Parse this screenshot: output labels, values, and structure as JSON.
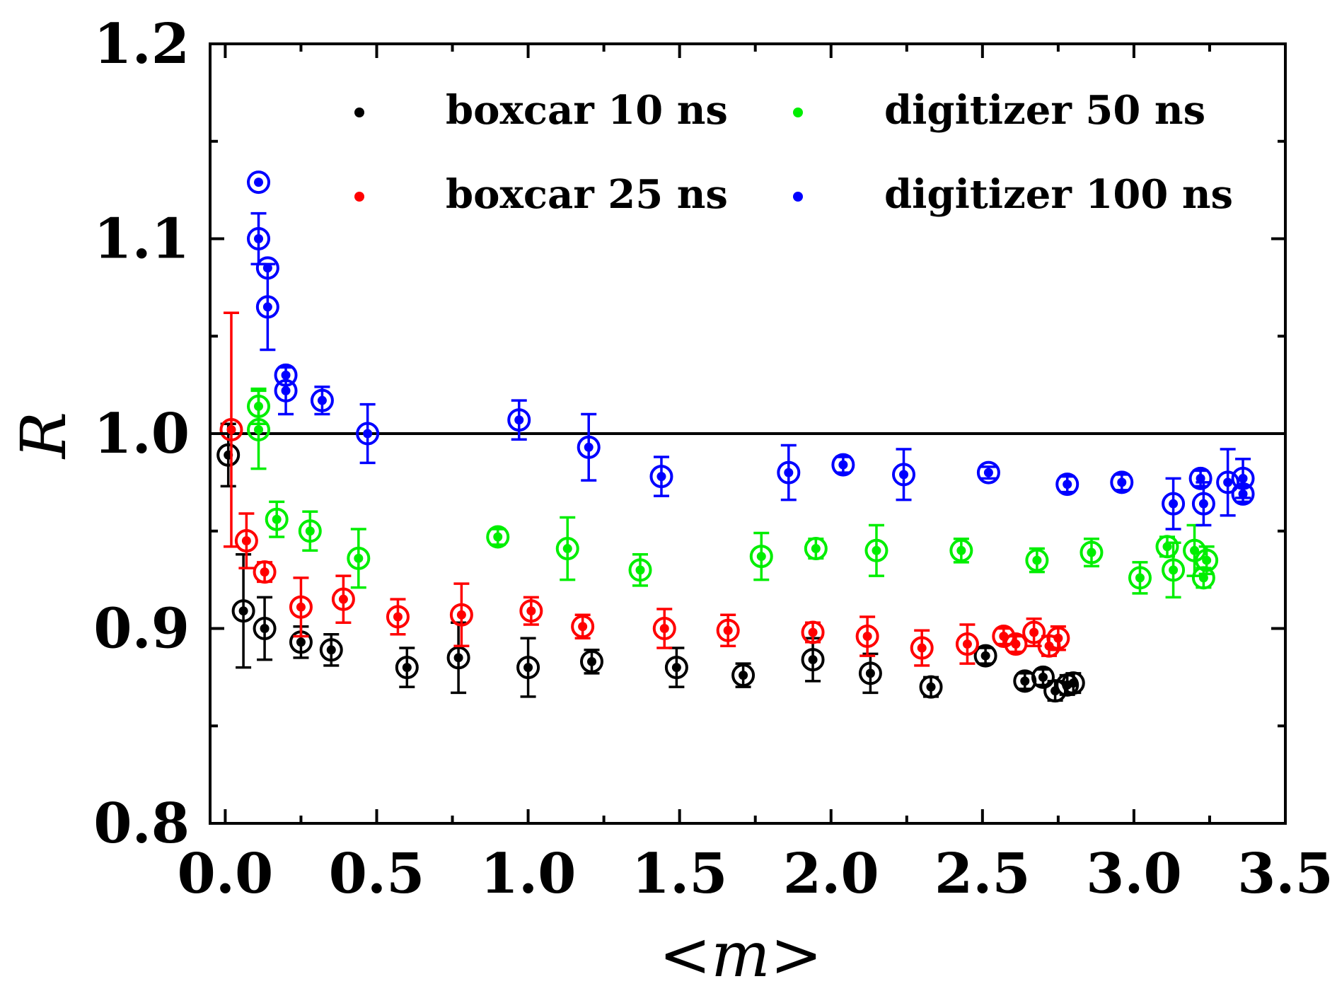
{
  "chart_data": {
    "type": "scatter",
    "title": "",
    "xlabel": "<m>",
    "ylabel": "R",
    "xlim": [
      -0.05,
      3.5
    ],
    "ylim": [
      0.8,
      1.2
    ],
    "xticks": [
      "0.0",
      "0.5",
      "1.0",
      "1.5",
      "2.0",
      "2.5",
      "3.0",
      "3.5"
    ],
    "xtick_values": [
      0,
      0.5,
      1.0,
      1.5,
      2.0,
      2.5,
      3.0,
      3.5
    ],
    "yticks": [
      "0.8",
      "0.9",
      "1.0",
      "1.1",
      "1.2"
    ],
    "ytick_values": [
      0.8,
      0.9,
      1.0,
      1.1,
      1.2
    ],
    "reference_line": 1.0,
    "legend_position": "top",
    "series": [
      {
        "name": "boxcar 10 ns",
        "color": "#000000",
        "points": [
          {
            "x": 0.01,
            "y": 0.989,
            "err": 0.016
          },
          {
            "x": 0.06,
            "y": 0.909,
            "err": 0.029
          },
          {
            "x": 0.13,
            "y": 0.9,
            "err": 0.016
          },
          {
            "x": 0.25,
            "y": 0.893,
            "err": 0.008
          },
          {
            "x": 0.35,
            "y": 0.889,
            "err": 0.008
          },
          {
            "x": 0.6,
            "y": 0.88,
            "err": 0.01
          },
          {
            "x": 0.77,
            "y": 0.885,
            "err": 0.018
          },
          {
            "x": 1.0,
            "y": 0.88,
            "err": 0.015
          },
          {
            "x": 1.21,
            "y": 0.883,
            "err": 0.006
          },
          {
            "x": 1.49,
            "y": 0.88,
            "err": 0.01
          },
          {
            "x": 1.71,
            "y": 0.876,
            "err": 0.006
          },
          {
            "x": 1.94,
            "y": 0.884,
            "err": 0.011
          },
          {
            "x": 2.13,
            "y": 0.877,
            "err": 0.01
          },
          {
            "x": 2.33,
            "y": 0.87,
            "err": 0.005
          },
          {
            "x": 2.51,
            "y": 0.886,
            "err": 0.004
          },
          {
            "x": 2.64,
            "y": 0.873,
            "err": 0.004
          },
          {
            "x": 2.7,
            "y": 0.875,
            "err": 0.004
          },
          {
            "x": 2.74,
            "y": 0.868,
            "err": 0.005
          },
          {
            "x": 2.78,
            "y": 0.871,
            "err": 0.005
          },
          {
            "x": 2.8,
            "y": 0.872,
            "err": 0.005
          }
        ]
      },
      {
        "name": "boxcar 25 ns",
        "color": "#ff0000",
        "points": [
          {
            "x": 0.02,
            "y": 1.002,
            "err": 0.06
          },
          {
            "x": 0.07,
            "y": 0.945,
            "err": 0.014
          },
          {
            "x": 0.13,
            "y": 0.929,
            "err": 0.005
          },
          {
            "x": 0.25,
            "y": 0.911,
            "err": 0.015
          },
          {
            "x": 0.39,
            "y": 0.915,
            "err": 0.012
          },
          {
            "x": 0.57,
            "y": 0.906,
            "err": 0.009
          },
          {
            "x": 0.78,
            "y": 0.907,
            "err": 0.016
          },
          {
            "x": 1.01,
            "y": 0.909,
            "err": 0.007
          },
          {
            "x": 1.18,
            "y": 0.901,
            "err": 0.006
          },
          {
            "x": 1.45,
            "y": 0.9,
            "err": 0.01
          },
          {
            "x": 1.66,
            "y": 0.899,
            "err": 0.008
          },
          {
            "x": 1.94,
            "y": 0.898,
            "err": 0.005
          },
          {
            "x": 2.12,
            "y": 0.896,
            "err": 0.01
          },
          {
            "x": 2.3,
            "y": 0.89,
            "err": 0.009
          },
          {
            "x": 2.45,
            "y": 0.892,
            "err": 0.01
          },
          {
            "x": 2.57,
            "y": 0.896,
            "err": 0.004
          },
          {
            "x": 2.61,
            "y": 0.892,
            "err": 0.004
          },
          {
            "x": 2.67,
            "y": 0.898,
            "err": 0.007
          },
          {
            "x": 2.72,
            "y": 0.891,
            "err": 0.005
          },
          {
            "x": 2.75,
            "y": 0.895,
            "err": 0.006
          }
        ]
      },
      {
        "name": "digitizer 50 ns",
        "color": "#00ee00",
        "points": [
          {
            "x": 0.11,
            "y": 1.014,
            "err": 0.009
          },
          {
            "x": 0.11,
            "y": 1.002,
            "err": 0.02
          },
          {
            "x": 0.17,
            "y": 0.956,
            "err": 0.009
          },
          {
            "x": 0.28,
            "y": 0.95,
            "err": 0.01
          },
          {
            "x": 0.44,
            "y": 0.936,
            "err": 0.015
          },
          {
            "x": 0.9,
            "y": 0.947,
            "err": 0.004
          },
          {
            "x": 1.13,
            "y": 0.941,
            "err": 0.016
          },
          {
            "x": 1.37,
            "y": 0.93,
            "err": 0.008
          },
          {
            "x": 1.77,
            "y": 0.937,
            "err": 0.012
          },
          {
            "x": 1.95,
            "y": 0.941,
            "err": 0.005
          },
          {
            "x": 2.15,
            "y": 0.94,
            "err": 0.013
          },
          {
            "x": 2.43,
            "y": 0.94,
            "err": 0.006
          },
          {
            "x": 2.68,
            "y": 0.935,
            "err": 0.006
          },
          {
            "x": 2.86,
            "y": 0.939,
            "err": 0.007
          },
          {
            "x": 3.02,
            "y": 0.926,
            "err": 0.008
          },
          {
            "x": 3.11,
            "y": 0.942,
            "err": 0.005
          },
          {
            "x": 3.13,
            "y": 0.93,
            "err": 0.014
          },
          {
            "x": 3.2,
            "y": 0.94,
            "err": 0.013
          },
          {
            "x": 3.23,
            "y": 0.926,
            "err": 0.005
          },
          {
            "x": 3.24,
            "y": 0.935,
            "err": 0.007
          }
        ]
      },
      {
        "name": "digitizer 100 ns",
        "color": "#0000ff",
        "points": [
          {
            "x": 0.11,
            "y": 1.129,
            "err": 0
          },
          {
            "x": 0.11,
            "y": 1.1,
            "err": 0.013
          },
          {
            "x": 0.14,
            "y": 1.085,
            "err": 0
          },
          {
            "x": 0.14,
            "y": 1.065,
            "err": 0.022
          },
          {
            "x": 0.2,
            "y": 1.03,
            "err": 0
          },
          {
            "x": 0.2,
            "y": 1.022,
            "err": 0.012
          },
          {
            "x": 0.32,
            "y": 1.017,
            "err": 0.007
          },
          {
            "x": 0.47,
            "y": 1.0,
            "err": 0.015
          },
          {
            "x": 0.97,
            "y": 1.007,
            "err": 0.01
          },
          {
            "x": 1.2,
            "y": 0.993,
            "err": 0.017
          },
          {
            "x": 1.44,
            "y": 0.978,
            "err": 0.01
          },
          {
            "x": 1.86,
            "y": 0.98,
            "err": 0.014
          },
          {
            "x": 2.04,
            "y": 0.984,
            "err": 0.004
          },
          {
            "x": 2.24,
            "y": 0.979,
            "err": 0.013
          },
          {
            "x": 2.52,
            "y": 0.98,
            "err": 0.003
          },
          {
            "x": 2.78,
            "y": 0.974,
            "err": 0.004
          },
          {
            "x": 2.96,
            "y": 0.975,
            "err": 0.004
          },
          {
            "x": 3.13,
            "y": 0.964,
            "err": 0.013
          },
          {
            "x": 3.22,
            "y": 0.977,
            "err": 0.004
          },
          {
            "x": 3.23,
            "y": 0.964,
            "err": 0.011
          },
          {
            "x": 3.31,
            "y": 0.975,
            "err": 0.017
          },
          {
            "x": 3.36,
            "y": 0.977,
            "err": 0.01
          },
          {
            "x": 3.36,
            "y": 0.969,
            "err": 0.004
          }
        ]
      }
    ]
  }
}
